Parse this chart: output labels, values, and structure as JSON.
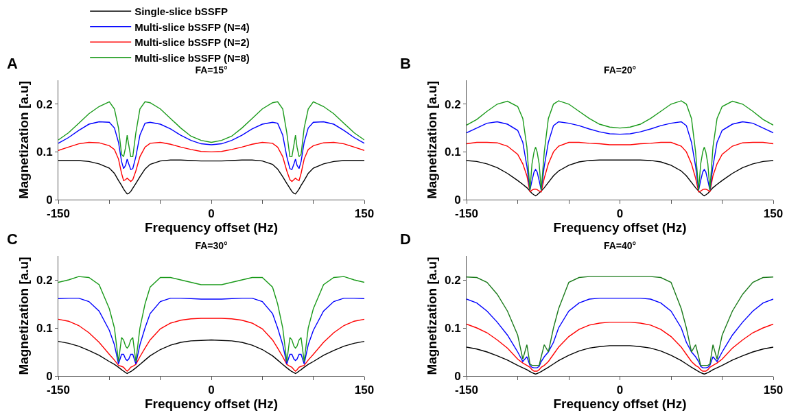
{
  "chart_data": [
    {
      "type": "line",
      "title": "FA=15°",
      "xlabel": "Frequency offset (Hz)",
      "ylabel": "Magnetization [a.u]",
      "annotations": [
        "A"
      ],
      "legend": "top",
      "grid": false,
      "marker": "none",
      "line_style": "solid",
      "x": [
        -150,
        -140,
        -130,
        -120,
        -110,
        -100,
        -95,
        -91,
        -88,
        -86,
        -84,
        -82.5,
        -81,
        -79,
        -77,
        -74,
        -70,
        -65,
        -60,
        -50,
        -40,
        -30,
        -20,
        -10,
        0,
        10,
        20,
        30,
        40,
        50,
        60,
        65,
        70,
        74,
        77,
        79,
        81,
        82.5,
        84,
        86,
        88,
        91,
        95,
        100,
        110,
        120,
        130,
        140,
        150
      ],
      "xlim": [
        -150,
        150
      ],
      "xticks": [
        -150,
        {
          "value": -100,
          "label": null
        },
        {
          "value": -50,
          "label": null
        },
        0,
        {
          "value": 50,
          "label": null
        },
        {
          "value": 100,
          "label": null
        },
        150
      ],
      "ylim": [
        0,
        0.25
      ],
      "yticks": [
        0,
        0.1,
        0.2
      ],
      "series": [
        {
          "name": "Single-slice bSSFP",
          "color": "#000000",
          "values": [
            0.082,
            0.082,
            0.082,
            0.08,
            0.075,
            0.066,
            0.055,
            0.04,
            0.03,
            0.022,
            0.016,
            0.012,
            0.013,
            0.017,
            0.024,
            0.034,
            0.048,
            0.064,
            0.074,
            0.081,
            0.083,
            0.083,
            0.082,
            0.081,
            0.081,
            0.081,
            0.082,
            0.083,
            0.083,
            0.081,
            0.074,
            0.064,
            0.048,
            0.034,
            0.024,
            0.017,
            0.013,
            0.012,
            0.016,
            0.022,
            0.03,
            0.04,
            0.055,
            0.066,
            0.075,
            0.08,
            0.082,
            0.082,
            0.082
          ]
        },
        {
          "name": "Multi-slice bSSFP (N=2)",
          "color": "#ff0000",
          "values": [
            0.103,
            0.11,
            0.117,
            0.12,
            0.119,
            0.113,
            0.105,
            0.085,
            0.055,
            0.04,
            0.042,
            0.045,
            0.042,
            0.038,
            0.042,
            0.06,
            0.09,
            0.11,
            0.118,
            0.12,
            0.116,
            0.11,
            0.105,
            0.101,
            0.1,
            0.101,
            0.105,
            0.11,
            0.116,
            0.12,
            0.118,
            0.11,
            0.09,
            0.06,
            0.042,
            0.038,
            0.042,
            0.045,
            0.042,
            0.04,
            0.055,
            0.085,
            0.105,
            0.113,
            0.119,
            0.12,
            0.117,
            0.11,
            0.103
          ]
        },
        {
          "name": "Multi-slice bSSFP (N=4)",
          "color": "#0000ff",
          "values": [
            0.118,
            0.13,
            0.145,
            0.158,
            0.163,
            0.162,
            0.15,
            0.12,
            0.08,
            0.065,
            0.072,
            0.085,
            0.075,
            0.063,
            0.065,
            0.09,
            0.135,
            0.16,
            0.162,
            0.158,
            0.148,
            0.135,
            0.124,
            0.117,
            0.115,
            0.117,
            0.124,
            0.135,
            0.148,
            0.158,
            0.162,
            0.16,
            0.135,
            0.09,
            0.065,
            0.063,
            0.075,
            0.085,
            0.072,
            0.065,
            0.08,
            0.12,
            0.15,
            0.162,
            0.163,
            0.158,
            0.145,
            0.13,
            0.118
          ]
        },
        {
          "name": "Multi-slice bSSFP (N=8)",
          "color": "#1a9a1a",
          "values": [
            0.125,
            0.14,
            0.16,
            0.18,
            0.195,
            0.205,
            0.19,
            0.15,
            0.095,
            0.09,
            0.11,
            0.135,
            0.115,
            0.09,
            0.09,
            0.14,
            0.19,
            0.205,
            0.203,
            0.19,
            0.17,
            0.15,
            0.133,
            0.124,
            0.12,
            0.124,
            0.133,
            0.15,
            0.17,
            0.19,
            0.203,
            0.205,
            0.19,
            0.14,
            0.09,
            0.09,
            0.115,
            0.135,
            0.11,
            0.09,
            0.095,
            0.15,
            0.19,
            0.205,
            0.195,
            0.18,
            0.16,
            0.14,
            0.125
          ]
        }
      ]
    },
    {
      "type": "line",
      "title": "FA=20°",
      "xlabel": "Frequency offset (Hz)",
      "ylabel": "Magnetization [a.u]",
      "annotations": [
        "B"
      ],
      "grid": false,
      "marker": "none",
      "line_style": "solid",
      "x": [
        -150,
        -140,
        -130,
        -120,
        -110,
        -100,
        -95,
        -91,
        -88,
        -86,
        -84,
        -82.5,
        -81,
        -79,
        -77,
        -74,
        -70,
        -65,
        -60,
        -50,
        -40,
        -30,
        -20,
        -10,
        0,
        10,
        20,
        30,
        40,
        50,
        60,
        65,
        70,
        74,
        77,
        79,
        81,
        82.5,
        84,
        86,
        88,
        91,
        95,
        100,
        110,
        120,
        130,
        140,
        150
      ],
      "xlim": [
        -150,
        150
      ],
      "xticks": [
        -150,
        {
          "value": -100,
          "label": null
        },
        {
          "value": -50,
          "label": null
        },
        0,
        {
          "value": 50,
          "label": null
        },
        {
          "value": 100,
          "label": null
        },
        150
      ],
      "ylim": [
        0,
        0.25
      ],
      "yticks": [
        0,
        0.1,
        0.2
      ],
      "series": [
        {
          "color": "#000000",
          "values": [
            0.082,
            0.08,
            0.075,
            0.067,
            0.055,
            0.04,
            0.032,
            0.025,
            0.018,
            0.013,
            0.01,
            0.008,
            0.01,
            0.014,
            0.018,
            0.025,
            0.036,
            0.05,
            0.06,
            0.072,
            0.079,
            0.082,
            0.083,
            0.083,
            0.083,
            0.083,
            0.083,
            0.082,
            0.079,
            0.072,
            0.06,
            0.05,
            0.036,
            0.025,
            0.018,
            0.014,
            0.01,
            0.008,
            0.01,
            0.013,
            0.018,
            0.025,
            0.032,
            0.04,
            0.055,
            0.067,
            0.075,
            0.08,
            0.082
          ]
        },
        {
          "color": "#ff0000",
          "values": [
            0.117,
            0.12,
            0.12,
            0.119,
            0.112,
            0.095,
            0.075,
            0.05,
            0.016,
            0.02,
            0.022,
            0.022,
            0.021,
            0.018,
            0.016,
            0.045,
            0.075,
            0.1,
            0.112,
            0.12,
            0.12,
            0.118,
            0.117,
            0.115,
            0.115,
            0.115,
            0.117,
            0.118,
            0.12,
            0.12,
            0.112,
            0.1,
            0.075,
            0.045,
            0.016,
            0.018,
            0.021,
            0.022,
            0.022,
            0.02,
            0.016,
            0.05,
            0.075,
            0.095,
            0.112,
            0.119,
            0.12,
            0.12,
            0.117
          ]
        },
        {
          "color": "#0000ff",
          "values": [
            0.14,
            0.15,
            0.16,
            0.163,
            0.158,
            0.145,
            0.12,
            0.07,
            0.02,
            0.04,
            0.058,
            0.063,
            0.058,
            0.04,
            0.02,
            0.07,
            0.12,
            0.155,
            0.163,
            0.16,
            0.155,
            0.148,
            0.142,
            0.138,
            0.137,
            0.138,
            0.142,
            0.148,
            0.155,
            0.16,
            0.163,
            0.155,
            0.12,
            0.07,
            0.02,
            0.04,
            0.058,
            0.063,
            0.058,
            0.04,
            0.02,
            0.07,
            0.12,
            0.145,
            0.158,
            0.163,
            0.16,
            0.15,
            0.14
          ]
        },
        {
          "color": "#1a9a1a",
          "values": [
            0.156,
            0.168,
            0.185,
            0.2,
            0.206,
            0.195,
            0.17,
            0.11,
            0.02,
            0.075,
            0.1,
            0.11,
            0.1,
            0.075,
            0.02,
            0.1,
            0.17,
            0.2,
            0.207,
            0.2,
            0.185,
            0.17,
            0.158,
            0.152,
            0.15,
            0.152,
            0.158,
            0.17,
            0.185,
            0.2,
            0.207,
            0.2,
            0.17,
            0.1,
            0.02,
            0.075,
            0.1,
            0.11,
            0.1,
            0.075,
            0.02,
            0.11,
            0.17,
            0.195,
            0.206,
            0.2,
            0.185,
            0.168,
            0.156
          ]
        }
      ]
    },
    {
      "type": "line",
      "title": "FA=30°",
      "xlabel": "Frequency offset (Hz)",
      "ylabel": "Magnetization [a.u]",
      "annotations": [
        "C"
      ],
      "grid": false,
      "marker": "none",
      "line_style": "solid",
      "x": [
        -150,
        -140,
        -130,
        -120,
        -110,
        -100,
        -95,
        -91,
        -88,
        -86,
        -84,
        -82.5,
        -81,
        -79,
        -77,
        -74,
        -70,
        -65,
        -60,
        -50,
        -40,
        -30,
        -20,
        -10,
        0,
        10,
        20,
        30,
        40,
        50,
        60,
        65,
        70,
        74,
        77,
        79,
        81,
        82.5,
        84,
        86,
        88,
        91,
        95,
        100,
        110,
        120,
        130,
        140,
        150
      ],
      "xlim": [
        -150,
        150
      ],
      "xticks": [
        -150,
        {
          "value": -100,
          "label": null
        },
        {
          "value": -50,
          "label": null
        },
        0,
        {
          "value": 50,
          "label": null
        },
        {
          "value": 100,
          "label": null
        },
        150
      ],
      "ylim": [
        0,
        0.25
      ],
      "yticks": [
        0,
        0.1,
        0.2
      ],
      "series": [
        {
          "color": "#000000",
          "values": [
            0.072,
            0.068,
            0.062,
            0.053,
            0.043,
            0.03,
            0.024,
            0.018,
            0.013,
            0.01,
            0.007,
            0.005,
            0.007,
            0.009,
            0.012,
            0.017,
            0.024,
            0.033,
            0.042,
            0.055,
            0.064,
            0.07,
            0.073,
            0.074,
            0.075,
            0.074,
            0.073,
            0.07,
            0.064,
            0.055,
            0.042,
            0.033,
            0.024,
            0.017,
            0.012,
            0.009,
            0.007,
            0.005,
            0.007,
            0.01,
            0.013,
            0.018,
            0.024,
            0.03,
            0.043,
            0.053,
            0.062,
            0.068,
            0.072
          ]
        },
        {
          "color": "#ff0000",
          "values": [
            0.118,
            0.114,
            0.105,
            0.09,
            0.07,
            0.045,
            0.033,
            0.022,
            0.02,
            0.018,
            0.013,
            0.01,
            0.013,
            0.018,
            0.02,
            0.024,
            0.04,
            0.058,
            0.075,
            0.098,
            0.11,
            0.116,
            0.119,
            0.12,
            0.12,
            0.12,
            0.119,
            0.116,
            0.11,
            0.098,
            0.075,
            0.058,
            0.04,
            0.024,
            0.02,
            0.018,
            0.013,
            0.01,
            0.013,
            0.018,
            0.02,
            0.022,
            0.033,
            0.045,
            0.07,
            0.09,
            0.105,
            0.114,
            0.118
          ]
        },
        {
          "color": "#0000ff",
          "values": [
            0.161,
            0.162,
            0.162,
            0.155,
            0.135,
            0.095,
            0.065,
            0.025,
            0.045,
            0.045,
            0.035,
            0.032,
            0.035,
            0.045,
            0.045,
            0.025,
            0.065,
            0.1,
            0.13,
            0.155,
            0.162,
            0.162,
            0.161,
            0.16,
            0.16,
            0.16,
            0.161,
            0.162,
            0.162,
            0.155,
            0.13,
            0.1,
            0.065,
            0.025,
            0.045,
            0.045,
            0.035,
            0.032,
            0.035,
            0.045,
            0.045,
            0.025,
            0.065,
            0.095,
            0.135,
            0.155,
            0.162,
            0.162,
            0.161
          ]
        },
        {
          "color": "#1a9a1a",
          "values": [
            0.195,
            0.2,
            0.207,
            0.205,
            0.19,
            0.14,
            0.1,
            0.03,
            0.08,
            0.075,
            0.062,
            0.058,
            0.062,
            0.075,
            0.08,
            0.03,
            0.1,
            0.15,
            0.185,
            0.205,
            0.205,
            0.2,
            0.195,
            0.19,
            0.19,
            0.19,
            0.195,
            0.2,
            0.205,
            0.205,
            0.185,
            0.15,
            0.1,
            0.03,
            0.08,
            0.075,
            0.062,
            0.058,
            0.062,
            0.075,
            0.08,
            0.03,
            0.1,
            0.14,
            0.19,
            0.205,
            0.207,
            0.2,
            0.195
          ]
        }
      ]
    },
    {
      "type": "line",
      "title": "FA=40°",
      "xlabel": "Frequency offset (Hz)",
      "ylabel": "Magnetization [a.u]",
      "annotations": [
        "D"
      ],
      "grid": false,
      "marker": "none",
      "line_style": "solid",
      "x": [
        -150,
        -140,
        -130,
        -120,
        -110,
        -100,
        -95,
        -91,
        -88,
        -86,
        -84,
        -82.5,
        -81,
        -79,
        -77,
        -74,
        -70,
        -65,
        -60,
        -50,
        -40,
        -30,
        -20,
        -10,
        0,
        10,
        20,
        30,
        40,
        50,
        60,
        65,
        70,
        74,
        77,
        79,
        81,
        82.5,
        84,
        86,
        88,
        91,
        95,
        100,
        110,
        120,
        130,
        140,
        150
      ],
      "xlim": [
        -150,
        150
      ],
      "xticks": [
        -150,
        {
          "value": -100,
          "label": null
        },
        {
          "value": -50,
          "label": null
        },
        0,
        {
          "value": 50,
          "label": null
        },
        {
          "value": 100,
          "label": null
        },
        150
      ],
      "ylim": [
        0,
        0.25
      ],
      "yticks": [
        0,
        0.1,
        0.2
      ],
      "series": [
        {
          "color": "#000000",
          "values": [
            0.06,
            0.056,
            0.05,
            0.042,
            0.033,
            0.022,
            0.017,
            0.013,
            0.009,
            0.007,
            0.005,
            0.004,
            0.005,
            0.007,
            0.009,
            0.013,
            0.018,
            0.025,
            0.032,
            0.043,
            0.052,
            0.058,
            0.061,
            0.063,
            0.063,
            0.063,
            0.061,
            0.058,
            0.052,
            0.043,
            0.032,
            0.025,
            0.018,
            0.013,
            0.009,
            0.007,
            0.005,
            0.004,
            0.005,
            0.007,
            0.009,
            0.013,
            0.017,
            0.022,
            0.033,
            0.042,
            0.05,
            0.056,
            0.06
          ]
        },
        {
          "color": "#ff0000",
          "values": [
            0.108,
            0.1,
            0.09,
            0.075,
            0.058,
            0.035,
            0.027,
            0.022,
            0.018,
            0.013,
            0.01,
            0.01,
            0.01,
            0.013,
            0.018,
            0.022,
            0.03,
            0.045,
            0.06,
            0.082,
            0.097,
            0.106,
            0.11,
            0.112,
            0.112,
            0.112,
            0.11,
            0.106,
            0.097,
            0.082,
            0.06,
            0.045,
            0.03,
            0.022,
            0.018,
            0.013,
            0.01,
            0.01,
            0.01,
            0.013,
            0.018,
            0.022,
            0.027,
            0.035,
            0.058,
            0.075,
            0.09,
            0.1,
            0.108
          ]
        },
        {
          "color": "#0000ff",
          "values": [
            0.16,
            0.152,
            0.135,
            0.112,
            0.085,
            0.05,
            0.03,
            0.04,
            0.022,
            0.018,
            0.017,
            0.017,
            0.017,
            0.02,
            0.03,
            0.04,
            0.05,
            0.07,
            0.1,
            0.135,
            0.152,
            0.16,
            0.162,
            0.162,
            0.162,
            0.162,
            0.162,
            0.16,
            0.152,
            0.135,
            0.1,
            0.07,
            0.05,
            0.04,
            0.03,
            0.02,
            0.017,
            0.017,
            0.017,
            0.018,
            0.022,
            0.04,
            0.03,
            0.05,
            0.085,
            0.112,
            0.135,
            0.152,
            0.16
          ]
        },
        {
          "color": "#1a7a1a",
          "values": [
            0.206,
            0.205,
            0.195,
            0.17,
            0.135,
            0.085,
            0.035,
            0.065,
            0.025,
            0.022,
            0.022,
            0.022,
            0.022,
            0.022,
            0.04,
            0.065,
            0.05,
            0.1,
            0.14,
            0.195,
            0.205,
            0.207,
            0.207,
            0.207,
            0.207,
            0.207,
            0.207,
            0.207,
            0.205,
            0.195,
            0.14,
            0.1,
            0.05,
            0.065,
            0.04,
            0.022,
            0.022,
            0.022,
            0.022,
            0.022,
            0.025,
            0.065,
            0.035,
            0.085,
            0.135,
            0.17,
            0.195,
            0.205,
            0.206
          ]
        }
      ]
    }
  ]
}
